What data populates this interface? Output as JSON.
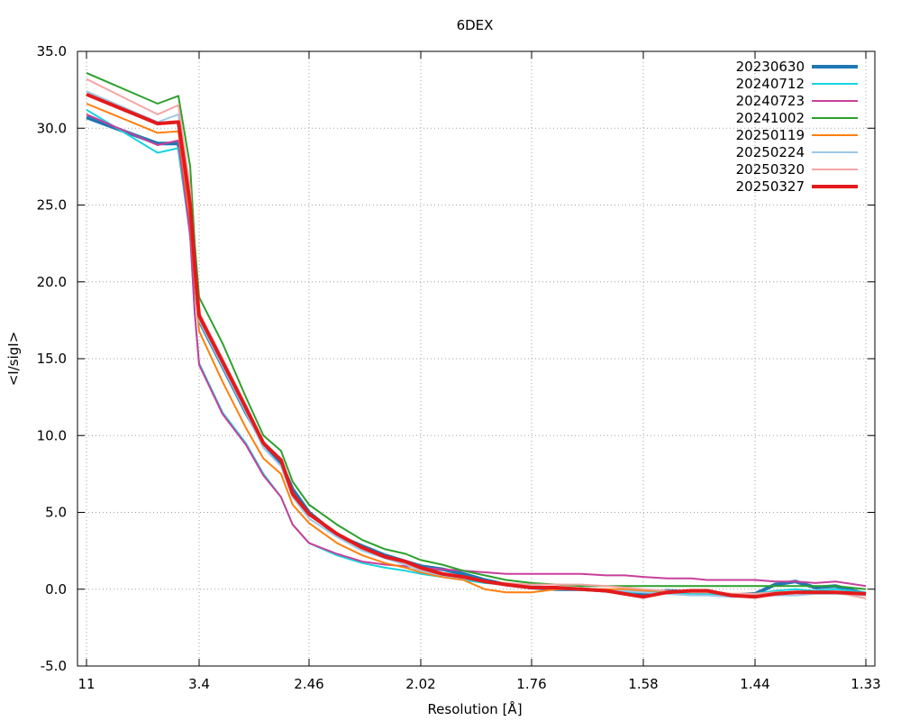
{
  "chart_data": {
    "type": "line",
    "title": "6DEX",
    "xlabel": "Resolution [Å]",
    "ylabel": "<I/sigI>",
    "x_axis": {
      "scale": "1/d^2",
      "ticks": [
        11,
        3.4,
        2.46,
        2.02,
        1.76,
        1.58,
        1.44,
        1.33
      ],
      "tick_labels": [
        "11",
        "3.4",
        "2.46",
        "2.02",
        "1.76",
        "1.58",
        "1.44",
        "1.33"
      ],
      "range": [
        11,
        1.33
      ]
    },
    "y_axis": {
      "ticks": [
        -5.0,
        0.0,
        5.0,
        10.0,
        15.0,
        20.0,
        25.0,
        30.0,
        35.0
      ],
      "tick_labels": [
        "-5.0",
        "0.0",
        "5.0",
        "10.0",
        "15.0",
        "20.0",
        "25.0",
        "30.0",
        "35.0"
      ],
      "ylim": [
        -5.0,
        35.0
      ]
    },
    "grid": true,
    "legend_position": "top-right",
    "series": [
      {
        "name": "20230630",
        "color": "#1f77b4",
        "width": 4,
        "x": [
          11,
          6.2,
          4.8,
          4.0,
          3.7,
          3.4,
          3.2,
          3.0,
          2.85,
          2.7,
          2.6,
          2.46,
          2.35,
          2.25,
          2.16,
          2.08,
          2.02,
          1.97,
          1.92,
          1.87,
          1.82,
          1.76,
          1.72,
          1.68,
          1.64,
          1.61,
          1.58,
          1.55,
          1.52,
          1.5,
          1.47,
          1.44,
          1.42,
          1.4,
          1.38,
          1.36,
          1.33
        ],
        "y": [
          30.7,
          29.0,
          29.0,
          23.5,
          20.5,
          17.5,
          14.5,
          11.5,
          9.5,
          8.2,
          6.5,
          5.0,
          3.5,
          2.8,
          2.2,
          1.8,
          1.5,
          1.3,
          1.0,
          0.6,
          0.3,
          0.1,
          0.0,
          0.0,
          -0.1,
          -0.2,
          -0.3,
          -0.1,
          -0.2,
          -0.3,
          -0.4,
          -0.3,
          0.3,
          0.5,
          0.1,
          0.2,
          -0.3
        ]
      },
      {
        "name": "20240712",
        "color": "#17d3e0",
        "width": 2,
        "x": [
          11,
          6.2,
          4.8,
          4.0,
          3.7,
          3.4,
          3.2,
          3.0,
          2.85,
          2.7,
          2.6,
          2.46,
          2.35,
          2.25,
          2.16,
          2.08,
          2.02,
          1.97,
          1.92,
          1.87,
          1.82,
          1.76,
          1.72,
          1.68,
          1.64,
          1.61,
          1.58,
          1.55,
          1.52,
          1.5,
          1.47,
          1.44,
          1.42,
          1.4,
          1.38,
          1.36,
          1.33
        ],
        "y": [
          31.2,
          28.4,
          28.7,
          23.0,
          18.0,
          14.7,
          11.5,
          9.5,
          7.5,
          6.0,
          4.2,
          3.0,
          2.2,
          1.7,
          1.4,
          1.2,
          1.0,
          0.8,
          0.6,
          0.4,
          0.3,
          0.2,
          0.1,
          0.0,
          -0.1,
          -0.2,
          -0.2,
          -0.2,
          -0.3,
          -0.3,
          -0.4,
          -0.3,
          -0.1,
          0.0,
          -0.1,
          0.0,
          -0.2
        ]
      },
      {
        "name": "20240723",
        "color": "#c8409a",
        "width": 2,
        "x": [
          11,
          6.2,
          4.8,
          4.0,
          3.7,
          3.4,
          3.2,
          3.0,
          2.85,
          2.7,
          2.6,
          2.46,
          2.35,
          2.25,
          2.16,
          2.08,
          2.02,
          1.97,
          1.92,
          1.87,
          1.82,
          1.76,
          1.72,
          1.68,
          1.64,
          1.61,
          1.58,
          1.55,
          1.52,
          1.5,
          1.47,
          1.44,
          1.42,
          1.4,
          1.38,
          1.36,
          1.33
        ],
        "y": [
          30.9,
          28.9,
          29.2,
          23.0,
          18.0,
          14.6,
          11.4,
          9.4,
          7.4,
          6.0,
          4.2,
          3.0,
          2.3,
          1.8,
          1.6,
          1.5,
          1.4,
          1.3,
          1.2,
          1.1,
          1.0,
          1.0,
          1.0,
          1.0,
          0.9,
          0.9,
          0.8,
          0.7,
          0.7,
          0.6,
          0.6,
          0.6,
          0.5,
          0.5,
          0.4,
          0.5,
          0.2
        ]
      },
      {
        "name": "20241002",
        "color": "#2ca02c",
        "width": 2,
        "x": [
          11,
          6.2,
          4.8,
          4.0,
          3.7,
          3.4,
          3.2,
          3.0,
          2.85,
          2.7,
          2.6,
          2.46,
          2.35,
          2.25,
          2.16,
          2.08,
          2.02,
          1.97,
          1.92,
          1.87,
          1.82,
          1.76,
          1.72,
          1.68,
          1.64,
          1.61,
          1.58,
          1.55,
          1.52,
          1.5,
          1.47,
          1.44,
          1.42,
          1.4,
          1.38,
          1.36,
          1.33
        ],
        "y": [
          33.6,
          31.6,
          32.1,
          27.5,
          22.5,
          19.0,
          16.0,
          12.5,
          10.0,
          9.0,
          7.0,
          5.5,
          4.2,
          3.2,
          2.6,
          2.3,
          1.9,
          1.6,
          1.2,
          0.9,
          0.6,
          0.4,
          0.3,
          0.2,
          0.2,
          0.2,
          0.2,
          0.2,
          0.2,
          0.2,
          0.2,
          0.2,
          0.2,
          0.2,
          0.2,
          0.2,
          0.0
        ]
      },
      {
        "name": "20250119",
        "color": "#ff7f0e",
        "width": 2,
        "x": [
          11,
          6.2,
          4.8,
          4.0,
          3.7,
          3.4,
          3.2,
          3.0,
          2.85,
          2.7,
          2.6,
          2.46,
          2.35,
          2.25,
          2.16,
          2.08,
          2.02,
          1.97,
          1.92,
          1.87,
          1.82,
          1.76,
          1.72,
          1.68,
          1.64,
          1.61,
          1.58,
          1.55,
          1.52,
          1.5,
          1.47,
          1.44,
          1.42,
          1.4,
          1.38,
          1.36,
          1.33
        ],
        "y": [
          31.6,
          29.7,
          29.8,
          24.0,
          20.0,
          16.8,
          13.5,
          10.5,
          8.5,
          7.5,
          5.5,
          4.3,
          3.0,
          2.2,
          1.7,
          1.4,
          1.1,
          0.8,
          0.6,
          0.0,
          -0.2,
          -0.2,
          0.0,
          0.0,
          0.0,
          0.0,
          -0.1,
          -0.1,
          -0.2,
          -0.2,
          -0.3,
          -0.3,
          -0.2,
          -0.2,
          -0.2,
          -0.2,
          -0.3
        ]
      },
      {
        "name": "20250224",
        "color": "#9ec8e8",
        "width": 2,
        "x": [
          11,
          6.2,
          4.8,
          4.0,
          3.7,
          3.4,
          3.2,
          3.0,
          2.85,
          2.7,
          2.6,
          2.46,
          2.35,
          2.25,
          2.16,
          2.08,
          2.02,
          1.97,
          1.92,
          1.87,
          1.82,
          1.76,
          1.72,
          1.68,
          1.64,
          1.61,
          1.58,
          1.55,
          1.52,
          1.5,
          1.47,
          1.44,
          1.42,
          1.4,
          1.38,
          1.36,
          1.33
        ],
        "y": [
          32.4,
          30.4,
          30.9,
          25.5,
          21.0,
          17.5,
          14.5,
          11.5,
          9.2,
          8.0,
          6.0,
          4.6,
          3.4,
          2.5,
          2.0,
          1.6,
          1.2,
          0.9,
          0.7,
          0.5,
          0.3,
          0.2,
          0.1,
          0.0,
          -0.1,
          -0.1,
          -0.2,
          -0.3,
          -0.4,
          -0.4,
          -0.5,
          -0.5,
          -0.4,
          -0.4,
          -0.3,
          -0.3,
          -0.4
        ]
      },
      {
        "name": "20250320",
        "color": "#f4a6a6",
        "width": 2,
        "x": [
          11,
          6.2,
          4.8,
          4.0,
          3.7,
          3.4,
          3.2,
          3.0,
          2.85,
          2.7,
          2.6,
          2.46,
          2.35,
          2.25,
          2.16,
          2.08,
          2.02,
          1.97,
          1.92,
          1.87,
          1.82,
          1.76,
          1.72,
          1.68,
          1.64,
          1.61,
          1.58,
          1.55,
          1.52,
          1.5,
          1.47,
          1.44,
          1.42,
          1.4,
          1.38,
          1.36,
          1.33
        ],
        "y": [
          33.2,
          30.9,
          31.5,
          26.0,
          21.5,
          18.0,
          15.0,
          12.0,
          9.6,
          8.4,
          6.3,
          4.8,
          3.6,
          2.7,
          2.1,
          1.7,
          1.3,
          1.0,
          0.8,
          0.5,
          0.4,
          0.3,
          0.3,
          0.3,
          0.2,
          0.1,
          0.0,
          -0.1,
          -0.2,
          -0.2,
          -0.3,
          -0.3,
          -0.2,
          -0.2,
          -0.2,
          -0.2,
          -0.6
        ]
      },
      {
        "name": "20250327",
        "color": "#e31a1c",
        "width": 4,
        "x": [
          11,
          6.2,
          4.8,
          4.0,
          3.7,
          3.4,
          3.2,
          3.0,
          2.85,
          2.7,
          2.6,
          2.46,
          2.35,
          2.25,
          2.16,
          2.08,
          2.02,
          1.97,
          1.92,
          1.87,
          1.82,
          1.76,
          1.72,
          1.68,
          1.64,
          1.61,
          1.58,
          1.55,
          1.52,
          1.5,
          1.47,
          1.44,
          1.42,
          1.4,
          1.38,
          1.36,
          1.33
        ],
        "y": [
          32.2,
          30.3,
          30.4,
          25.0,
          21.0,
          17.8,
          14.8,
          11.8,
          9.5,
          8.4,
          6.2,
          4.9,
          3.6,
          2.7,
          2.1,
          1.8,
          1.4,
          1.0,
          0.8,
          0.5,
          0.3,
          0.1,
          0.1,
          0.0,
          -0.1,
          -0.3,
          -0.5,
          -0.2,
          -0.1,
          -0.1,
          -0.4,
          -0.5,
          -0.3,
          -0.2,
          -0.2,
          -0.2,
          -0.3
        ]
      }
    ]
  }
}
